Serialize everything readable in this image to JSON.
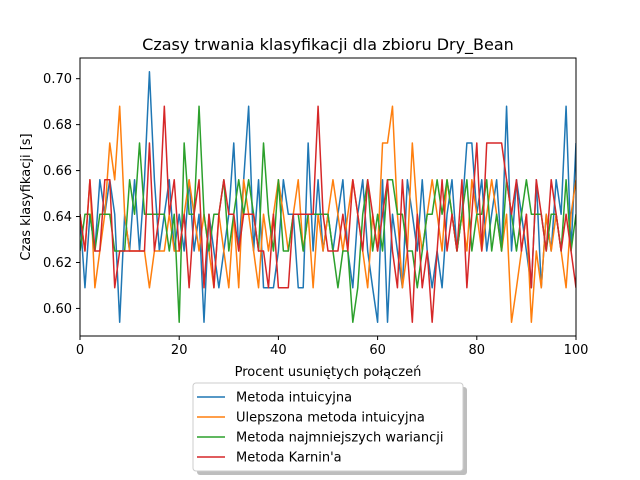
{
  "chart_data": {
    "type": "line",
    "title": "Czasy trwania klasyfikacji dla zbioru Dry_Bean",
    "xlabel": "Procent usuniętych połączeń",
    "ylabel": "Czas klasyfikacji [s]",
    "xlim": [
      0,
      100
    ],
    "ylim": [
      0.588,
      0.709
    ],
    "xticks": [
      0,
      20,
      40,
      60,
      80,
      100
    ],
    "yticks": [
      0.6,
      0.62,
      0.64,
      0.66,
      0.68,
      0.7
    ],
    "xtick_labels": [
      "0",
      "20",
      "40",
      "60",
      "80",
      "100"
    ],
    "ytick_labels": [
      "0.60",
      "0.62",
      "0.64",
      "0.66",
      "0.68",
      "0.70"
    ],
    "grid": false,
    "legend_position": "below-center",
    "x": [
      0,
      1,
      2,
      3,
      4,
      5,
      6,
      7,
      8,
      9,
      10,
      11,
      12,
      13,
      14,
      15,
      16,
      17,
      18,
      19,
      20,
      21,
      22,
      23,
      24,
      25,
      26,
      27,
      28,
      29,
      30,
      31,
      32,
      33,
      34,
      35,
      36,
      37,
      38,
      39,
      40,
      41,
      42,
      43,
      44,
      45,
      46,
      47,
      48,
      49,
      50,
      51,
      52,
      53,
      54,
      55,
      56,
      57,
      58,
      59,
      60,
      61,
      62,
      63,
      64,
      65,
      66,
      67,
      68,
      69,
      70,
      71,
      72,
      73,
      74,
      75,
      76,
      77,
      78,
      79,
      80,
      81,
      82,
      83,
      84,
      85,
      86,
      87,
      88,
      89,
      90,
      91,
      92,
      93,
      94,
      95,
      96,
      97,
      98,
      99,
      100
    ],
    "series": [
      {
        "name": "Metoda intuicyjna",
        "color": "#1f77b4",
        "values": [
          0.641,
          0.609,
          0.641,
          0.625,
          0.656,
          0.641,
          0.656,
          0.641,
          0.594,
          0.641,
          0.625,
          0.656,
          0.625,
          0.656,
          0.703,
          0.656,
          0.625,
          0.641,
          0.656,
          0.625,
          0.641,
          0.625,
          0.656,
          0.625,
          0.641,
          0.594,
          0.641,
          0.625,
          0.609,
          0.625,
          0.641,
          0.672,
          0.625,
          0.656,
          0.688,
          0.625,
          0.656,
          0.609,
          0.609,
          0.609,
          0.625,
          0.656,
          0.641,
          0.641,
          0.609,
          0.609,
          0.672,
          0.625,
          0.656,
          0.625,
          0.641,
          0.625,
          0.641,
          0.656,
          0.625,
          0.609,
          0.641,
          0.656,
          0.625,
          0.609,
          0.594,
          0.656,
          0.594,
          0.641,
          0.625,
          0.609,
          0.656,
          0.641,
          0.625,
          0.656,
          0.625,
          0.609,
          0.625,
          0.609,
          0.641,
          0.656,
          0.625,
          0.641,
          0.672,
          0.672,
          0.641,
          0.656,
          0.625,
          0.641,
          0.656,
          0.625,
          0.688,
          0.625,
          0.656,
          0.641,
          0.625,
          0.609,
          0.656,
          0.609,
          0.641,
          0.625,
          0.656,
          0.641,
          0.688,
          0.625,
          0.672
        ]
      },
      {
        "name": "Ulepszona metoda intuicyjna",
        "color": "#ff7f0e",
        "values": [
          0.641,
          0.625,
          0.656,
          0.609,
          0.625,
          0.641,
          0.672,
          0.656,
          0.688,
          0.641,
          0.625,
          0.625,
          0.625,
          0.625,
          0.609,
          0.625,
          0.625,
          0.625,
          0.641,
          0.625,
          0.625,
          0.641,
          0.656,
          0.641,
          0.625,
          0.641,
          0.625,
          0.609,
          0.641,
          0.625,
          0.609,
          0.641,
          0.609,
          0.656,
          0.641,
          0.625,
          0.609,
          0.641,
          0.625,
          0.641,
          0.656,
          0.641,
          0.625,
          0.641,
          0.656,
          0.625,
          0.641,
          0.609,
          0.641,
          0.625,
          0.641,
          0.656,
          0.641,
          0.625,
          0.641,
          0.656,
          0.641,
          0.625,
          0.609,
          0.641,
          0.625,
          0.672,
          0.672,
          0.688,
          0.641,
          0.609,
          0.625,
          0.672,
          0.641,
          0.625,
          0.641,
          0.656,
          0.641,
          0.625,
          0.656,
          0.641,
          0.625,
          0.641,
          0.625,
          0.656,
          0.641,
          0.625,
          0.641,
          0.656,
          0.641,
          0.625,
          0.641,
          0.594,
          0.609,
          0.625,
          0.641,
          0.594,
          0.625,
          0.609,
          0.641,
          0.625,
          0.641,
          0.625,
          0.609,
          0.641,
          0.656
        ]
      },
      {
        "name": "Metoda najmniejszych wariancji",
        "color": "#2ca02c",
        "values": [
          0.625,
          0.641,
          0.641,
          0.625,
          0.641,
          0.641,
          0.641,
          0.625,
          0.625,
          0.625,
          0.656,
          0.641,
          0.672,
          0.641,
          0.641,
          0.641,
          0.641,
          0.641,
          0.625,
          0.641,
          0.594,
          0.672,
          0.641,
          0.641,
          0.688,
          0.641,
          0.625,
          0.641,
          0.641,
          0.656,
          0.625,
          0.641,
          0.656,
          0.641,
          0.656,
          0.641,
          0.625,
          0.672,
          0.641,
          0.625,
          0.656,
          0.625,
          0.625,
          0.641,
          0.641,
          0.625,
          0.641,
          0.641,
          0.641,
          0.641,
          0.641,
          0.625,
          0.609,
          0.625,
          0.625,
          0.594,
          0.609,
          0.641,
          0.656,
          0.625,
          0.641,
          0.625,
          0.656,
          0.656,
          0.641,
          0.641,
          0.625,
          0.625,
          0.609,
          0.625,
          0.641,
          0.641,
          0.656,
          0.641,
          0.656,
          0.641,
          0.625,
          0.641,
          0.656,
          0.625,
          0.641,
          0.641,
          0.656,
          0.625,
          0.641,
          0.625,
          0.656,
          0.641,
          0.625,
          0.641,
          0.656,
          0.641,
          0.641,
          0.641,
          0.625,
          0.641,
          0.641,
          0.625,
          0.656,
          0.625,
          0.641
        ]
      },
      {
        "name": "Metoda Karnin'a",
        "color": "#d62728",
        "values": [
          0.641,
          0.625,
          0.656,
          0.625,
          0.625,
          0.656,
          0.656,
          0.609,
          0.625,
          0.625,
          0.625,
          0.625,
          0.625,
          0.625,
          0.672,
          0.625,
          0.641,
          0.688,
          0.641,
          0.656,
          0.625,
          0.641,
          0.609,
          0.641,
          0.656,
          0.609,
          0.641,
          0.609,
          0.641,
          0.656,
          0.641,
          0.641,
          0.625,
          0.641,
          0.641,
          0.641,
          0.625,
          0.625,
          0.609,
          0.641,
          0.609,
          0.609,
          0.609,
          0.641,
          0.641,
          0.641,
          0.641,
          0.641,
          0.688,
          0.641,
          0.625,
          0.625,
          0.625,
          0.641,
          0.625,
          0.656,
          0.641,
          0.625,
          0.656,
          0.641,
          0.625,
          0.641,
          0.656,
          0.625,
          0.609,
          0.656,
          0.625,
          0.594,
          0.641,
          0.609,
          0.625,
          0.594,
          0.625,
          0.656,
          0.625,
          0.641,
          0.625,
          0.656,
          0.609,
          0.641,
          0.672,
          0.625,
          0.672,
          0.672,
          0.672,
          0.672,
          0.656,
          0.641,
          0.656,
          0.625,
          0.641,
          0.609,
          0.656,
          0.641,
          0.625,
          0.656,
          0.641,
          0.625,
          0.641,
          0.625,
          0.609
        ]
      }
    ]
  }
}
